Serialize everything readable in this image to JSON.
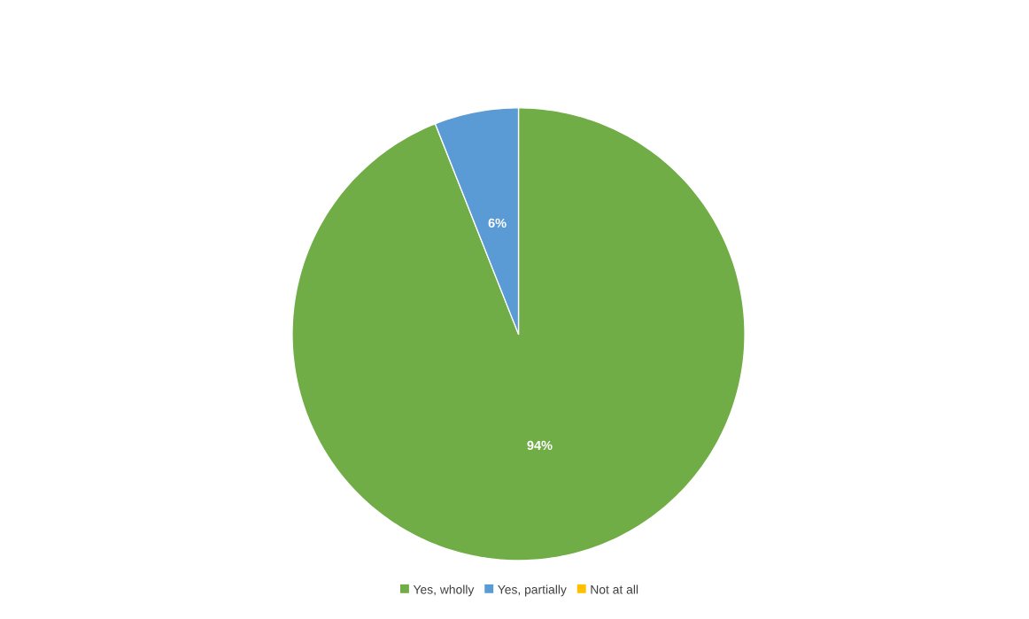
{
  "chart_data": {
    "type": "pie",
    "categories": [
      "Yes, wholly",
      "Yes, partially",
      "Not at all"
    ],
    "values": [
      94,
      6,
      0
    ],
    "colors": [
      "#70ad47",
      "#5b9bd5",
      "#ffc000"
    ],
    "value_labels": [
      "94%",
      "6%",
      null
    ],
    "legend": "bottom"
  }
}
